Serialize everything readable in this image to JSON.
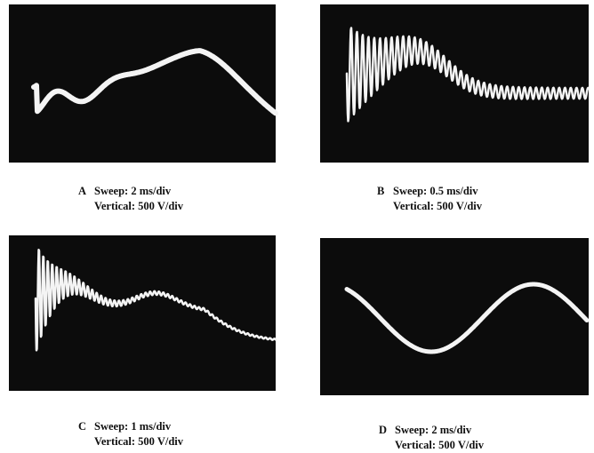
{
  "panels": [
    {
      "letter": "A",
      "sweep": "Sweep:  2 ms/div",
      "vertical": "Vertical:  500 V/div"
    },
    {
      "letter": "B",
      "sweep": "Sweep:  0.5 ms/div",
      "vertical": "Vertical:  500 V/div"
    },
    {
      "letter": "C",
      "sweep": "Sweep:  1 ms/div",
      "vertical": "Vertical:  500 V/div"
    },
    {
      "letter": "D",
      "sweep": "Sweep:  2 ms/div",
      "vertical": "Vertical:  500 V/div"
    }
  ]
}
